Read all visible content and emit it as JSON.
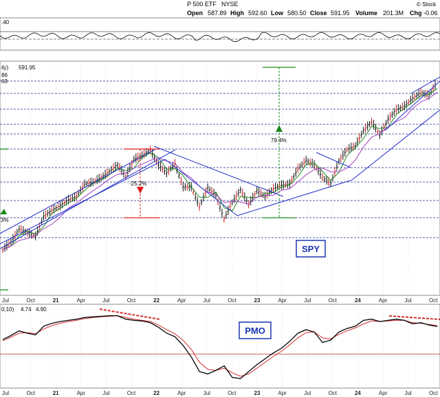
{
  "header": {
    "title_fragment": "P 500 ETF",
    "exchange": "NYSE",
    "open_label": "Open",
    "open": "587.89",
    "high_label": "High",
    "high": "592.60",
    "low_label": "Low",
    "low": "580.50",
    "close_label": "Close",
    "close": "591.95",
    "volume_label": "Volume",
    "volume": "201.3M",
    "chg_label": "Chg",
    "chg": "-0.06",
    "watermark": "© Stock"
  },
  "rsi_panel": {
    "label_fragment": ".40"
  },
  "price_panel": {
    "legend_fragment": "ily)",
    "legend_value": "591.95",
    "legend_sub1": "86",
    "legend_sub2": "63",
    "symbol_label": "SPY",
    "annotations": [
      {
        "id": "decline-2022",
        "text": "-25.2%"
      },
      {
        "id": "rally-2023",
        "text": "79.4%"
      },
      {
        "id": "left-cut",
        "text": "3%"
      }
    ]
  },
  "pmo_panel": {
    "legend_fragment": "0,10)",
    "value1": "4.74",
    "value2": "4.90",
    "colors": {
      "value1": "#000000",
      "value2": "#d42b2b"
    },
    "label": "PMO"
  },
  "colors": {
    "price_bar": "#111111",
    "down_bar": "#c81e1e",
    "ma_fast": "#1e8a1e",
    "ma_slow": "#a040c0",
    "channel": "#2030c8",
    "grid_dash": "#1a2a8a",
    "pmo_line": "#000000",
    "pmo_signal": "#d42b2b",
    "label_box": "#1a33b3",
    "arrow_red": "#e01818",
    "arrow_green": "#1a8a1a"
  },
  "chart_data": [
    {
      "type": "line",
      "title": "SPY",
      "x_ticks_1": [
        "Jul",
        "Oct",
        "21",
        "Apr",
        "Jul",
        "Oct",
        "22",
        "Apr",
        "Jul",
        "Oct",
        "23",
        "Apr",
        "Jul",
        "Oct",
        "24",
        "Apr",
        "Jul",
        "Oct"
      ],
      "x_ticks_2": [
        "Jul",
        "Oct",
        "21",
        "Apr",
        "Jul",
        "Oct",
        "22",
        "Apr",
        "Jul",
        "Oct",
        "23",
        "Apr",
        "Jul",
        "Oct",
        "24",
        "Apr",
        "Jul",
        "Oct"
      ],
      "x": [
        "2020-06",
        "2020-07",
        "2020-08",
        "2020-09",
        "2020-10",
        "2020-11",
        "2020-12",
        "2021-01",
        "2021-02",
        "2021-03",
        "2021-04",
        "2021-05",
        "2021-06",
        "2021-07",
        "2021-08",
        "2021-09",
        "2021-10",
        "2021-11",
        "2021-12",
        "2022-01",
        "2022-02",
        "2022-03",
        "2022-04",
        "2022-05",
        "2022-06",
        "2022-07",
        "2022-08",
        "2022-09",
        "2022-10",
        "2022-11",
        "2022-12",
        "2023-01",
        "2023-02",
        "2023-03",
        "2023-04",
        "2023-05",
        "2023-06",
        "2023-07",
        "2023-08",
        "2023-09",
        "2023-10",
        "2023-11",
        "2023-12",
        "2024-01",
        "2024-02",
        "2024-03",
        "2024-04",
        "2024-05",
        "2024-06",
        "2024-07",
        "2024-08",
        "2024-09",
        "2024-10",
        "2024-11"
      ],
      "series": [
        {
          "values": [
            305,
            318,
            340,
            334,
            328,
            362,
            372,
            380,
            390,
            396,
            417,
            420,
            428,
            438,
            450,
            430,
            459,
            466,
            475,
            449,
            436,
            451,
            412,
            412,
            378,
            411,
            397,
            357,
            386,
            407,
            382,
            406,
            396,
            409,
            415,
            417,
            443,
            457,
            450,
            428,
            418,
            456,
            476,
            482,
            508,
            523,
            501,
            527,
            544,
            550,
            563,
            573,
            568,
            592
          ]
        }
      ],
      "grid": true
    },
    {
      "type": "line",
      "title": "PMO",
      "x": [
        "2020-06",
        "2020-07",
        "2020-08",
        "2020-09",
        "2020-10",
        "2020-11",
        "2020-12",
        "2021-01",
        "2021-02",
        "2021-03",
        "2021-04",
        "2021-05",
        "2021-06",
        "2021-07",
        "2021-08",
        "2021-09",
        "2021-10",
        "2021-11",
        "2021-12",
        "2022-01",
        "2022-02",
        "2022-03",
        "2022-04",
        "2022-05",
        "2022-06",
        "2022-07",
        "2022-08",
        "2022-09",
        "2022-10",
        "2022-11",
        "2022-12",
        "2023-01",
        "2023-02",
        "2023-03",
        "2023-04",
        "2023-05",
        "2023-06",
        "2023-07",
        "2023-08",
        "2023-09",
        "2023-10",
        "2023-11",
        "2023-12",
        "2024-01",
        "2024-02",
        "2024-03",
        "2024-04",
        "2024-05",
        "2024-06",
        "2024-07",
        "2024-08",
        "2024-09",
        "2024-10",
        "2024-11"
      ],
      "series": [
        {
          "values": [
            2.5,
            3.2,
            4.0,
            3.6,
            3.3,
            4.8,
            5.3,
            5.6,
            5.8,
            6.0,
            6.3,
            6.4,
            6.5,
            6.6,
            6.6,
            6.0,
            5.8,
            5.7,
            5.4,
            4.6,
            3.6,
            3.0,
            1.5,
            -0.5,
            -3.0,
            -3.4,
            -2.8,
            -2.0,
            -4.0,
            -4.2,
            -3.0,
            -1.8,
            -0.8,
            0.2,
            1.0,
            2.2,
            3.6,
            4.2,
            3.8,
            2.0,
            2.4,
            3.8,
            4.4,
            4.8,
            5.8,
            6.0,
            5.6,
            5.8,
            6.0,
            5.8,
            5.2,
            5.4,
            5.0,
            4.74
          ]
        },
        {
          "values": [
            2.3,
            2.9,
            3.6,
            3.7,
            3.5,
            4.3,
            4.9,
            5.3,
            5.6,
            5.8,
            6.1,
            6.3,
            6.4,
            6.5,
            6.6,
            6.3,
            6.0,
            5.8,
            5.6,
            5.0,
            4.2,
            3.5,
            2.4,
            0.8,
            -1.4,
            -2.6,
            -2.8,
            -2.4,
            -3.2,
            -3.8,
            -3.4,
            -2.4,
            -1.4,
            -0.4,
            0.5,
            1.6,
            2.8,
            3.7,
            3.8,
            2.8,
            2.6,
            3.4,
            4.0,
            4.5,
            5.2,
            5.7,
            5.6,
            5.7,
            5.8,
            5.8,
            5.4,
            5.3,
            5.1,
            4.9
          ]
        }
      ],
      "grid": true
    }
  ]
}
